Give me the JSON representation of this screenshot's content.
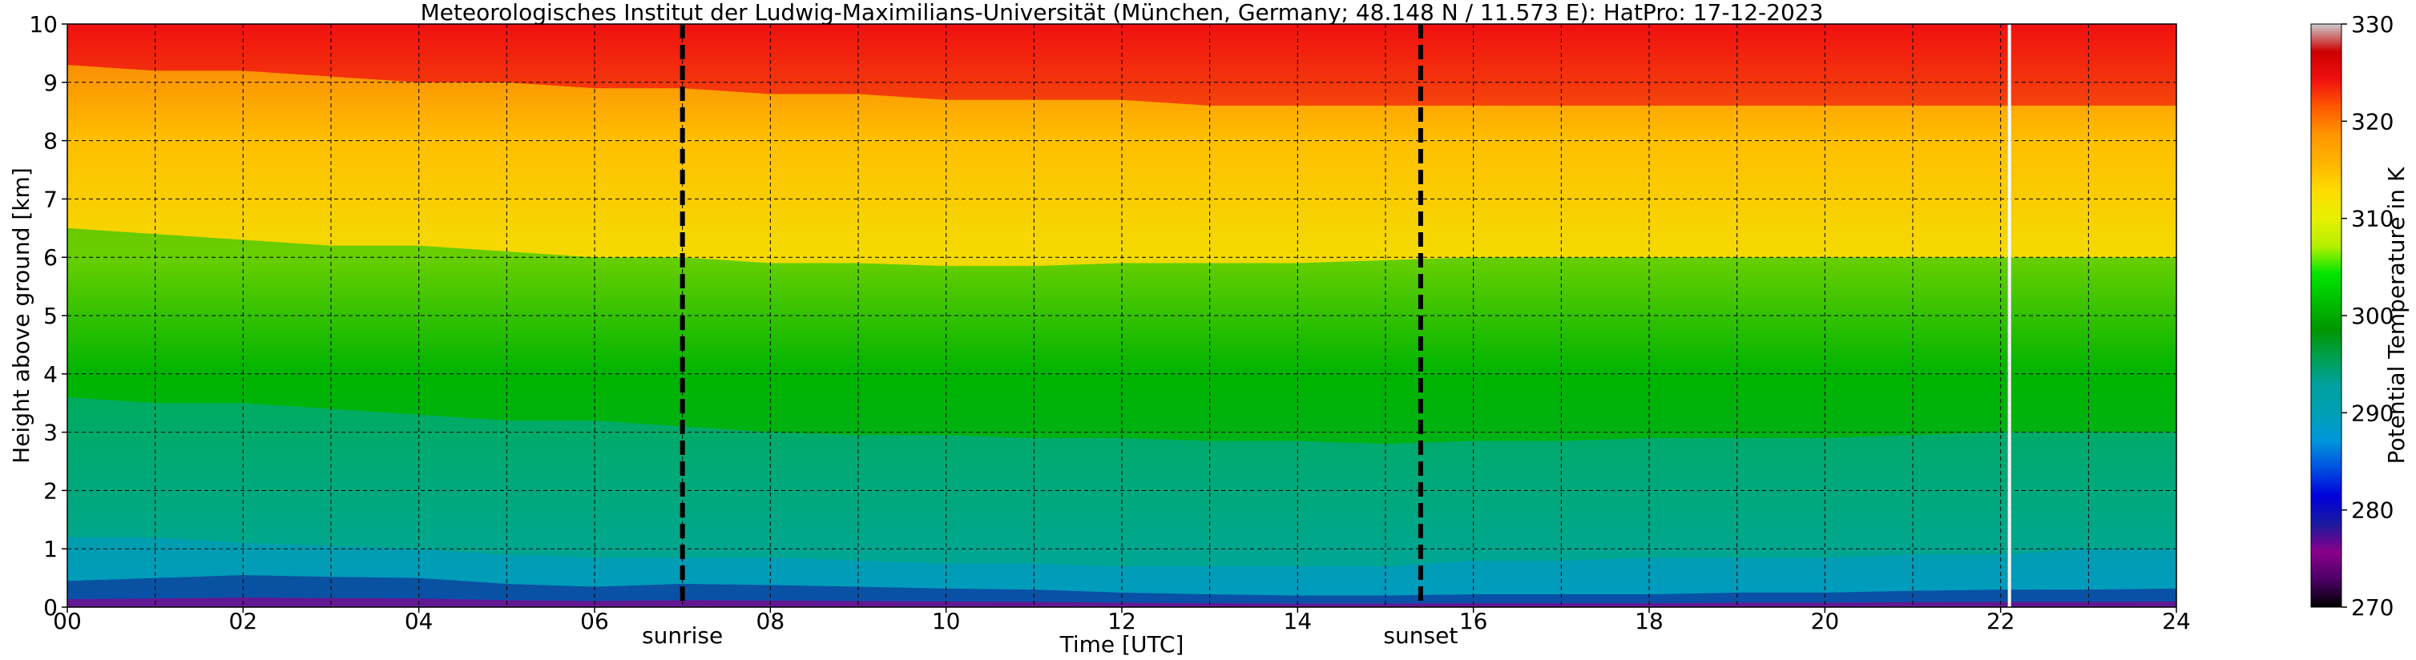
{
  "chart_data": {
    "type": "heatmap",
    "title": "Meteorologisches Institut der Ludwig-Maximilians-Universität (München, Germany; 48.148 N / 11.573 E):    HatPro: 17-12-2023",
    "xlabel": "Time [UTC]",
    "ylabel": "Height above ground [km]",
    "xlim": [
      0,
      24
    ],
    "ylim": [
      0,
      10
    ],
    "x_ticks": [
      "00",
      "02",
      "04",
      "06",
      "08",
      "10",
      "12",
      "14",
      "16",
      "18",
      "20",
      "22",
      "24"
    ],
    "y_ticks": [
      "0",
      "1",
      "2",
      "3",
      "4",
      "5",
      "6",
      "7",
      "8",
      "9",
      "10"
    ],
    "grid": true,
    "colorbar": {
      "label": "Potential Temperature in K",
      "range": [
        270,
        330
      ],
      "ticks": [
        "270",
        "280",
        "290",
        "300",
        "310",
        "320",
        "330"
      ],
      "colors": [
        "#000000",
        "#4b0066",
        "#8a008a",
        "#1a1aa0",
        "#0000dc",
        "#0050e0",
        "#0096dc",
        "#00a0b4",
        "#00a0a0",
        "#00a050",
        "#009600",
        "#00be00",
        "#00e600",
        "#b4f000",
        "#e6f000",
        "#ffdc00",
        "#ffb400",
        "#ff9600",
        "#ff5a00",
        "#f01010",
        "#cc0000",
        "#cccccc"
      ]
    },
    "annotations": [
      {
        "text": "sunrise",
        "x": 7.0
      },
      {
        "text": "sunset",
        "x": 15.4
      }
    ],
    "marker_line_x": 22.1,
    "x": [
      0,
      1,
      2,
      3,
      4,
      5,
      6,
      7,
      8,
      9,
      10,
      11,
      12,
      13,
      14,
      15,
      16,
      17,
      18,
      19,
      20,
      21,
      22,
      23,
      24
    ],
    "contour_heights_km": {
      "theta_280": [
        0.45,
        0.5,
        0.55,
        0.52,
        0.5,
        0.4,
        0.35,
        0.4,
        0.38,
        0.35,
        0.32,
        0.3,
        0.25,
        0.22,
        0.2,
        0.2,
        0.22,
        0.22,
        0.22,
        0.25,
        0.25,
        0.28,
        0.3,
        0.3,
        0.32
      ],
      "theta_290": [
        1.2,
        1.2,
        1.1,
        1.05,
        1.0,
        0.9,
        0.85,
        0.85,
        0.85,
        0.8,
        0.75,
        0.75,
        0.7,
        0.7,
        0.7,
        0.7,
        0.8,
        0.8,
        0.85,
        0.85,
        0.85,
        0.9,
        0.9,
        1.0,
        1.0
      ],
      "theta_300": [
        3.6,
        3.5,
        3.5,
        3.4,
        3.3,
        3.2,
        3.2,
        3.1,
        3.0,
        2.95,
        2.95,
        2.9,
        2.9,
        2.85,
        2.85,
        2.8,
        2.85,
        2.85,
        2.9,
        2.9,
        2.9,
        2.95,
        3.0,
        3.0,
        3.0
      ],
      "theta_310": [
        6.5,
        6.4,
        6.3,
        6.2,
        6.2,
        6.1,
        6.0,
        6.0,
        5.9,
        5.9,
        5.85,
        5.85,
        5.9,
        5.9,
        5.9,
        5.95,
        6.0,
        6.0,
        6.0,
        6.0,
        6.0,
        6.0,
        6.0,
        6.0,
        6.0
      ],
      "theta_320": [
        9.3,
        9.2,
        9.2,
        9.1,
        9.0,
        9.0,
        8.9,
        8.9,
        8.8,
        8.8,
        8.7,
        8.7,
        8.7,
        8.6,
        8.6,
        8.6,
        8.6,
        8.6,
        8.6,
        8.6,
        8.6,
        8.6,
        8.6,
        8.6,
        8.6
      ]
    }
  }
}
